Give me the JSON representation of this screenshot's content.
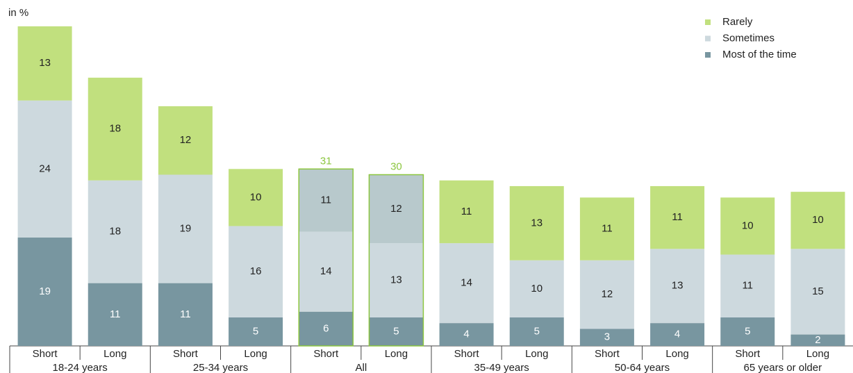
{
  "chart_data": {
    "type": "stacked-bar",
    "y_label": "in %",
    "categories": [
      "Short",
      "Long",
      "Short",
      "Long",
      "Short",
      "Long",
      "Short",
      "Long",
      "Short",
      "Long",
      "Short",
      "Long"
    ],
    "groups": [
      "18-24 years",
      "25-34 years",
      "All",
      "35-49 years",
      "50-64 years",
      "65 years or older"
    ],
    "series": [
      {
        "name": "Most of the time",
        "color": "#7896a0",
        "values": [
          19,
          11,
          11,
          5,
          6,
          5,
          4,
          5,
          3,
          4,
          5,
          2
        ]
      },
      {
        "name": "Sometimes",
        "color": "#cdd9de",
        "values": [
          24,
          18,
          19,
          16,
          14,
          13,
          14,
          10,
          12,
          13,
          11,
          15
        ]
      },
      {
        "name": "Rarely",
        "color": "#c1e07e",
        "values": [
          13,
          18,
          12,
          10,
          11,
          12,
          11,
          13,
          11,
          11,
          10,
          10
        ]
      }
    ],
    "totals": [
      null,
      null,
      null,
      null,
      31,
      30,
      null,
      null,
      null,
      null,
      null,
      null
    ],
    "highlight": {
      "group": "All",
      "outline": "#8cc63f",
      "colors": [
        "#7896a0",
        "#cdd9de",
        "#b8c9cc"
      ]
    },
    "ylim": [
      0,
      60
    ],
    "legend": "top-right"
  }
}
